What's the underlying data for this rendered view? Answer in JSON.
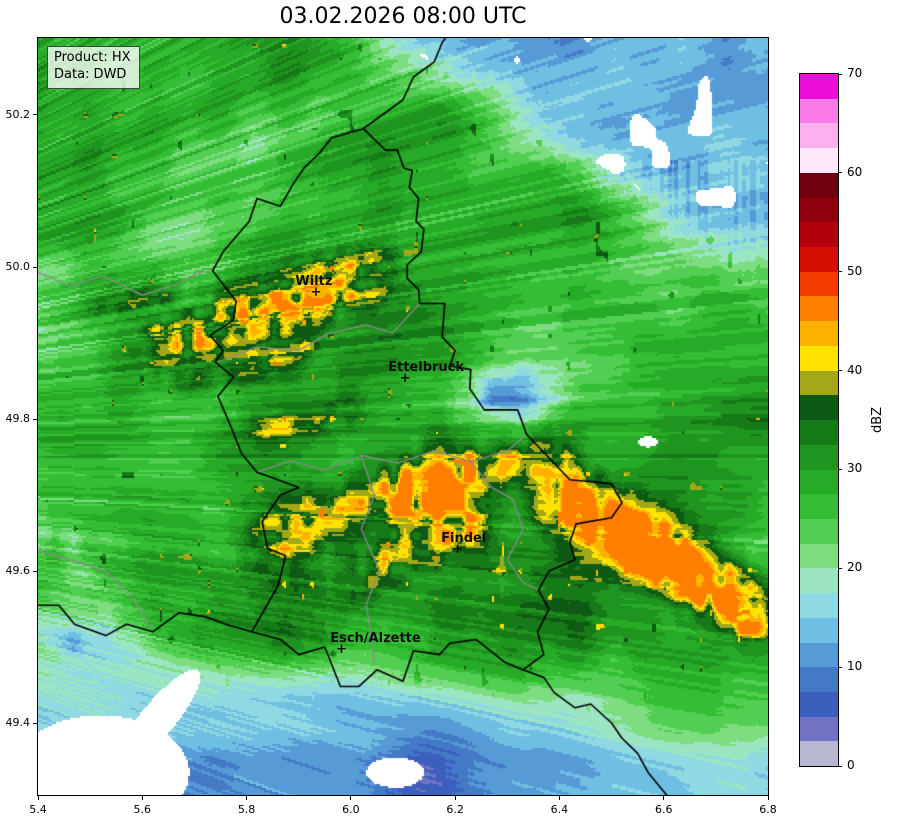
{
  "title": "03.02.2026 08:00 UTC",
  "legend": {
    "lines": [
      "Product: HX",
      "Data: DWD"
    ]
  },
  "axes": {
    "x_ticks": [
      5.4,
      5.6,
      5.8,
      6.0,
      6.2,
      6.4,
      6.6,
      6.8
    ],
    "y_ticks": [
      49.4,
      49.6,
      49.8,
      50.0,
      50.2
    ],
    "extent": {
      "lon_min": 5.4,
      "lon_max": 6.8,
      "lat_min": 49.3053,
      "lat_max": 50.3013
    }
  },
  "colorbar": {
    "label": "dBZ",
    "vmin": 0,
    "vmax": 70,
    "tick_values": [
      0,
      10,
      20,
      30,
      40,
      50,
      60,
      70
    ],
    "colors_top_to_bottom": [
      "#ec0fd8",
      "#fa7ae6",
      "#fcb1ef",
      "#fee9fa",
      "#70000f",
      "#8f000f",
      "#b2000e",
      "#d40e00",
      "#f53b00",
      "#fe7e00",
      "#fdb200",
      "#fee300",
      "#a3a819",
      "#0e5a14",
      "#177a18",
      "#1f941f",
      "#27aa27",
      "#35bd35",
      "#52cf52",
      "#7ddd80",
      "#9ce5c2",
      "#8fd9e2",
      "#6fbfe3",
      "#569ad6",
      "#4479c6",
      "#3c5fbe",
      "#7272c4",
      "#b7b7d2"
    ],
    "no_echo_color": "#ffffff"
  },
  "cities": [
    {
      "name": "Wiltz",
      "lon": 5.933,
      "lat": 49.966,
      "label_dx": -2
    },
    {
      "name": "Ettelbruck",
      "lon": 6.104,
      "lat": 49.852,
      "label_dx": 21
    },
    {
      "name": "Findel",
      "lon": 6.205,
      "lat": 49.627,
      "label_dx": 6
    },
    {
      "name": "Esch/Alzette",
      "lon": 5.982,
      "lat": 49.496,
      "label_dx": 34
    }
  ],
  "borders": {
    "black": [
      [
        [
          6.024,
          50.182
        ],
        [
          6.066,
          50.154
        ],
        [
          6.089,
          50.154
        ],
        [
          6.102,
          50.13
        ],
        [
          6.118,
          50.127
        ],
        [
          6.112,
          50.105
        ],
        [
          6.13,
          50.09
        ],
        [
          6.125,
          50.06
        ],
        [
          6.14,
          50.05
        ],
        [
          6.135,
          50.02
        ],
        [
          6.108,
          50.003
        ],
        [
          6.108,
          49.985
        ],
        [
          6.13,
          49.97
        ],
        [
          6.132,
          49.952
        ],
        [
          6.18,
          49.952
        ],
        [
          6.175,
          49.908
        ],
        [
          6.2,
          49.89
        ],
        [
          6.19,
          49.87
        ],
        [
          6.23,
          49.865
        ],
        [
          6.228,
          49.84
        ],
        [
          6.256,
          49.812
        ],
        [
          6.32,
          49.812
        ],
        [
          6.337,
          49.78
        ],
        [
          6.42,
          49.72
        ],
        [
          6.5,
          49.715
        ],
        [
          6.52,
          49.69
        ],
        [
          6.5,
          49.67
        ],
        [
          6.432,
          49.662
        ],
        [
          6.42,
          49.638
        ],
        [
          6.43,
          49.615
        ],
        [
          6.38,
          49.6
        ],
        [
          6.36,
          49.575
        ],
        [
          6.38,
          49.55
        ],
        [
          6.358,
          49.52
        ],
        [
          6.37,
          49.49
        ],
        [
          6.33,
          49.47
        ],
        [
          6.295,
          49.48
        ],
        [
          6.24,
          49.51
        ],
        [
          6.19,
          49.505
        ],
        [
          6.17,
          49.49
        ],
        [
          6.12,
          49.495
        ],
        [
          6.1,
          49.455
        ],
        [
          6.05,
          49.47
        ],
        [
          6.015,
          49.448
        ],
        [
          5.98,
          49.448
        ],
        [
          5.95,
          49.5
        ],
        [
          5.9,
          49.49
        ],
        [
          5.865,
          49.51
        ],
        [
          5.81,
          49.52
        ],
        [
          5.835,
          49.55
        ],
        [
          5.86,
          49.58
        ],
        [
          5.875,
          49.62
        ],
        [
          5.84,
          49.63
        ],
        [
          5.83,
          49.665
        ],
        [
          5.865,
          49.7
        ],
        [
          5.9,
          49.71
        ],
        [
          5.86,
          49.72
        ],
        [
          5.82,
          49.73
        ],
        [
          5.79,
          49.755
        ],
        [
          5.77,
          49.79
        ],
        [
          5.745,
          49.83
        ],
        [
          5.775,
          49.855
        ],
        [
          5.74,
          49.875
        ],
        [
          5.755,
          49.89
        ],
        [
          5.73,
          49.91
        ],
        [
          5.775,
          49.93
        ],
        [
          5.78,
          49.955
        ],
        [
          5.735,
          49.995
        ],
        [
          5.755,
          50.02
        ],
        [
          5.78,
          50.04
        ],
        [
          5.805,
          50.06
        ],
        [
          5.82,
          50.09
        ],
        [
          5.865,
          50.08
        ],
        [
          5.89,
          50.11
        ],
        [
          5.91,
          50.13
        ],
        [
          5.94,
          50.15
        ],
        [
          5.963,
          50.17
        ],
        [
          6.024,
          50.182
        ]
      ],
      [
        [
          6.024,
          50.182
        ],
        [
          6.06,
          50.2
        ],
        [
          6.1,
          50.22
        ],
        [
          6.12,
          50.25
        ],
        [
          6.16,
          50.27
        ],
        [
          6.175,
          50.295
        ],
        [
          6.19,
          50.31
        ]
      ],
      [
        [
          5.81,
          49.52
        ],
        [
          5.76,
          49.53
        ],
        [
          5.72,
          49.54
        ],
        [
          5.67,
          49.545
        ],
        [
          5.62,
          49.52
        ],
        [
          5.57,
          49.53
        ],
        [
          5.53,
          49.515
        ],
        [
          5.47,
          49.53
        ],
        [
          5.44,
          49.555
        ],
        [
          5.395,
          49.555
        ]
      ],
      [
        [
          6.33,
          49.47
        ],
        [
          6.37,
          49.46
        ],
        [
          6.39,
          49.44
        ],
        [
          6.43,
          49.42
        ],
        [
          6.46,
          49.425
        ],
        [
          6.5,
          49.4
        ],
        [
          6.52,
          49.38
        ],
        [
          6.55,
          49.36
        ],
        [
          6.57,
          49.335
        ],
        [
          6.6,
          49.31
        ],
        [
          6.612,
          49.3
        ]
      ]
    ],
    "gray": [
      [
        [
          5.745,
          49.875
        ],
        [
          5.82,
          49.895
        ],
        [
          5.9,
          49.89
        ],
        [
          5.955,
          49.912
        ],
        [
          6.03,
          49.924
        ],
        [
          6.08,
          49.913
        ],
        [
          6.132,
          49.952
        ]
      ],
      [
        [
          5.82,
          49.73
        ],
        [
          5.885,
          49.745
        ],
        [
          5.95,
          49.733
        ],
        [
          6.02,
          49.752
        ],
        [
          6.09,
          49.742
        ],
        [
          6.16,
          49.758
        ],
        [
          6.23,
          49.744
        ],
        [
          6.3,
          49.758
        ],
        [
          6.337,
          49.78
        ]
      ],
      [
        [
          6.02,
          49.752
        ],
        [
          6.045,
          49.7
        ],
        [
          6.02,
          49.655
        ],
        [
          6.055,
          49.6
        ],
        [
          6.03,
          49.557
        ],
        [
          6.045,
          49.48
        ]
      ],
      [
        [
          6.23,
          49.744
        ],
        [
          6.27,
          49.71
        ],
        [
          6.31,
          49.695
        ],
        [
          6.33,
          49.655
        ],
        [
          6.3,
          49.615
        ],
        [
          6.33,
          49.585
        ],
        [
          6.36,
          49.575
        ]
      ],
      [
        [
          5.395,
          49.995
        ],
        [
          5.46,
          49.975
        ],
        [
          5.525,
          49.988
        ],
        [
          5.6,
          49.963
        ],
        [
          5.665,
          49.977
        ],
        [
          5.71,
          49.993
        ],
        [
          5.735,
          49.995
        ]
      ],
      [
        [
          5.395,
          49.628
        ],
        [
          5.47,
          49.613
        ],
        [
          5.53,
          49.6
        ],
        [
          5.585,
          49.562
        ],
        [
          5.62,
          49.52
        ]
      ]
    ]
  },
  "radar_features": {
    "base_dbz": 26.5,
    "ne_low_region": {
      "boundary_lat_at_5_95": 50.32,
      "boundary_slope": -0.42,
      "mean_dbz": 12.5
    },
    "south_low_region": {
      "boundary_lat_west": 49.525,
      "boundary_drop_east": 0.05,
      "mean_dbz": 14
    },
    "cyan_patches": [
      {
        "c": [
          6.3,
          49.825
        ],
        "r": [
          0.1,
          0.038
        ],
        "depth": 13
      },
      {
        "c": [
          5.44,
          49.6
        ],
        "r": [
          0.1,
          0.11
        ],
        "depth": 8
      },
      {
        "c": [
          5.47,
          49.5
        ],
        "r": [
          0.12,
          0.05
        ],
        "depth": 7
      }
    ],
    "white_no_echo": [
      {
        "c": [
          5.52,
          49.335
        ],
        "r": [
          0.17,
          0.075
        ],
        "rot": 0
      },
      {
        "c": [
          5.63,
          49.405
        ],
        "r": [
          0.1,
          0.027
        ],
        "rot": 0.66
      },
      {
        "c": [
          6.085,
          49.335
        ],
        "r": [
          0.055,
          0.02
        ],
        "rot": 0
      },
      {
        "c": [
          6.57,
          49.77
        ],
        "r": [
          0.018,
          0.007
        ],
        "rot": 0
      }
    ],
    "high_dbz_streaks": [
      {
        "from": [
          5.66,
          49.905
        ],
        "to": [
          6.02,
          49.985
        ],
        "amp": 14,
        "w": 0.042,
        "spk": 1.0
      },
      {
        "from": [
          5.7,
          49.852
        ],
        "to": [
          5.9,
          49.893
        ],
        "amp": 7,
        "w": 0.024,
        "spk": 1.0
      },
      {
        "from": [
          5.84,
          49.782
        ],
        "to": [
          5.99,
          49.815
        ],
        "amp": 7,
        "w": 0.022,
        "spk": 1.0
      },
      {
        "from": [
          5.86,
          49.648
        ],
        "to": [
          6.18,
          49.725
        ],
        "amp": 12,
        "w": 0.047,
        "spk": 1.0
      },
      {
        "from": [
          6.1,
          49.703
        ],
        "to": [
          6.38,
          49.753
        ],
        "amp": 10,
        "w": 0.034,
        "spk": 1.0
      },
      {
        "from": [
          6.04,
          49.598
        ],
        "to": [
          6.22,
          49.658
        ],
        "amp": 9,
        "w": 0.028,
        "spk": 1.0
      },
      {
        "from": [
          6.42,
          49.695
        ],
        "to": [
          6.76,
          49.558
        ],
        "amp": 19,
        "w": 0.04,
        "spk": 0.5
      },
      {
        "from": [
          6.56,
          49.618
        ],
        "to": [
          6.78,
          49.523
        ],
        "amp": 9,
        "w": 0.026,
        "spk": 0.8
      },
      {
        "from": [
          5.5,
          49.945
        ],
        "to": [
          5.64,
          49.972
        ],
        "amp": 7,
        "w": 0.02,
        "spk": 1.0
      },
      {
        "from": [
          5.72,
          49.545
        ],
        "to": [
          6.42,
          49.625
        ],
        "amp": 4,
        "w": 0.085,
        "spk": 0.0
      }
    ]
  }
}
